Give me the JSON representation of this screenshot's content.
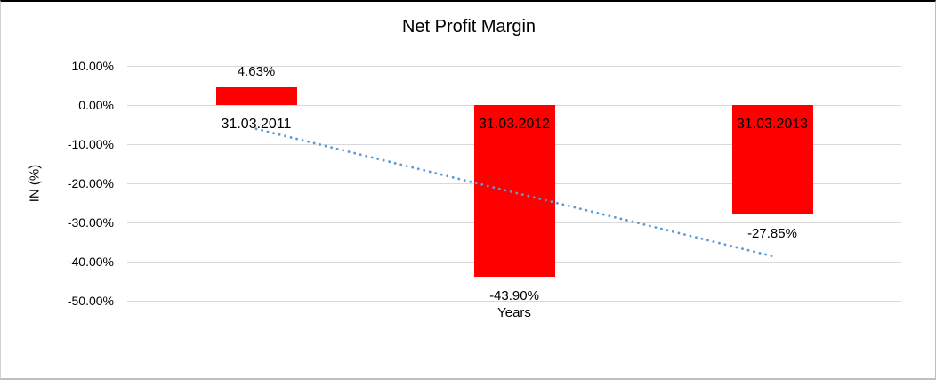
{
  "chart_data": {
    "type": "bar",
    "title": "Net Profit Margin",
    "xlabel": "Years",
    "ylabel": "IN (%)",
    "categories": [
      "31.03.2011",
      "31.03.2012",
      "31.03.2013"
    ],
    "values": [
      4.63,
      -43.9,
      -27.85
    ],
    "data_labels": [
      "4.63%",
      "-43.90%",
      "-27.85%"
    ],
    "ylim": [
      -50,
      10
    ],
    "yticks": [
      10,
      0,
      -10,
      -20,
      -30,
      -40,
      -50
    ],
    "ytick_labels": [
      "10.00%",
      "0.00%",
      "-10.00%",
      "-20.00%",
      "-30.00%",
      "-40.00%",
      "-50.00%"
    ],
    "grid": true,
    "legend": false,
    "bar_color": "#FF0000",
    "gridline_color": "#D9D9D9",
    "text_color": "#000000",
    "background_color": "#FFFFFF",
    "trendline": {
      "style": "dotted",
      "color": "#5B9BD5",
      "start_value": -6.1,
      "end_value": -38.6
    }
  }
}
